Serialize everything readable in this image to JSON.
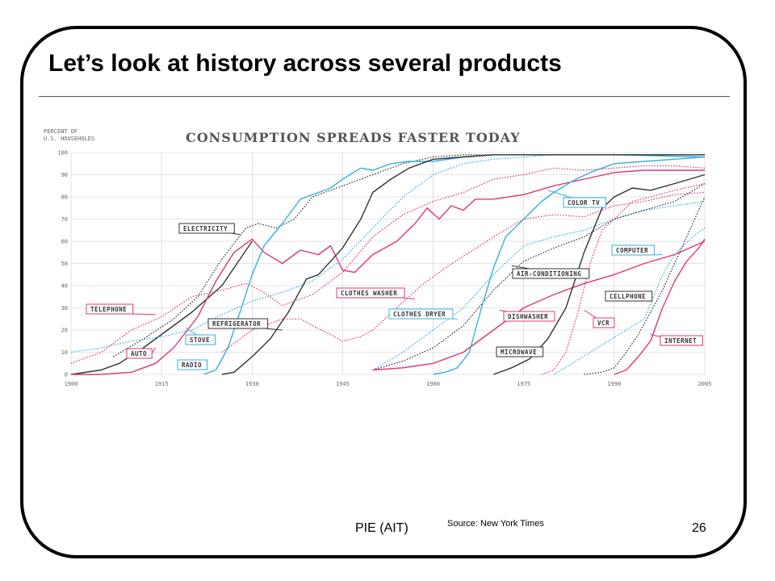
{
  "slide": {
    "title": "Let’s look at history across several products",
    "footer_left": "PIE (AIT)",
    "footer_source": "Source: New York Times",
    "page_number": "26"
  },
  "colors": {
    "pink": "#e0357a",
    "blue": "#35b0e0",
    "black": "#333333",
    "grid": "#cccccc"
  },
  "chart_data": {
    "type": "line",
    "title": "CONSUMPTION SPREADS FASTER TODAY",
    "ylabel_lines": [
      "PERCENT OF",
      "U.S. HOUSEHOLDS"
    ],
    "xlim": [
      1900,
      2005
    ],
    "ylim": [
      0,
      100
    ],
    "x_ticks": [
      1900,
      1915,
      1930,
      1945,
      1960,
      1975,
      1990,
      2005
    ],
    "y_ticks": [
      0,
      10,
      20,
      30,
      40,
      50,
      60,
      70,
      80,
      90,
      100
    ],
    "series": [
      {
        "name": "TELEPHONE",
        "color": "pink",
        "dash": true,
        "points": [
          [
            1900,
            5
          ],
          [
            1905,
            10
          ],
          [
            1910,
            20
          ],
          [
            1915,
            26
          ],
          [
            1920,
            35
          ],
          [
            1925,
            38
          ],
          [
            1929,
            41
          ],
          [
            1932,
            37
          ],
          [
            1935,
            31
          ],
          [
            1940,
            36
          ],
          [
            1945,
            46
          ],
          [
            1950,
            62
          ],
          [
            1955,
            72
          ],
          [
            1960,
            78
          ],
          [
            1965,
            82
          ],
          [
            1970,
            88
          ],
          [
            1975,
            90
          ],
          [
            1980,
            93
          ],
          [
            1985,
            92
          ],
          [
            1990,
            93
          ],
          [
            1995,
            94
          ],
          [
            2000,
            94
          ],
          [
            2005,
            93
          ]
        ]
      },
      {
        "name": "ELECTRICITY",
        "color": "black",
        "dash": true,
        "points": [
          [
            1907,
            8
          ],
          [
            1912,
            16
          ],
          [
            1917,
            25
          ],
          [
            1921,
            35
          ],
          [
            1925,
            52
          ],
          [
            1929,
            66
          ],
          [
            1931,
            68
          ],
          [
            1934,
            66
          ],
          [
            1937,
            70
          ],
          [
            1940,
            80
          ],
          [
            1945,
            85
          ],
          [
            1950,
            90
          ],
          [
            1955,
            95
          ],
          [
            1960,
            98
          ],
          [
            1965,
            99
          ],
          [
            1970,
            99
          ],
          [
            1980,
            99
          ],
          [
            2005,
            99
          ]
        ]
      },
      {
        "name": "AUTO",
        "color": "black",
        "dash": false,
        "points": [
          [
            1900,
            0
          ],
          [
            1905,
            2
          ],
          [
            1908,
            5
          ],
          [
            1912,
            12
          ],
          [
            1916,
            20
          ],
          [
            1920,
            28
          ],
          [
            1925,
            40
          ],
          [
            1930,
            60
          ]
        ]
      },
      {
        "name": "AUTO_CONTINUED",
        "color": "pink",
        "dash": false,
        "points": [
          [
            1900,
            0
          ],
          [
            1905,
            0
          ],
          [
            1910,
            1
          ],
          [
            1914,
            5
          ],
          [
            1917,
            12
          ],
          [
            1921,
            26
          ],
          [
            1924,
            42
          ],
          [
            1927,
            55
          ],
          [
            1930,
            61
          ],
          [
            1932,
            55
          ],
          [
            1935,
            50
          ],
          [
            1938,
            56
          ],
          [
            1941,
            54
          ],
          [
            1943,
            58
          ],
          [
            1945,
            47
          ],
          [
            1947,
            46
          ],
          [
            1950,
            54
          ],
          [
            1954,
            60
          ],
          [
            1957,
            68
          ],
          [
            1959,
            75
          ],
          [
            1961,
            70
          ],
          [
            1963,
            76
          ],
          [
            1965,
            74
          ],
          [
            1967,
            79
          ],
          [
            1970,
            79
          ],
          [
            1975,
            81
          ],
          [
            1980,
            85
          ],
          [
            1985,
            88
          ],
          [
            1990,
            91
          ],
          [
            1995,
            92
          ],
          [
            2000,
            92
          ],
          [
            2005,
            92
          ]
        ]
      },
      {
        "name": "RADIO",
        "color": "blue",
        "dash": false,
        "points": [
          [
            1922,
            0
          ],
          [
            1924,
            2
          ],
          [
            1926,
            12
          ],
          [
            1928,
            28
          ],
          [
            1930,
            45
          ],
          [
            1932,
            58
          ],
          [
            1935,
            68
          ],
          [
            1938,
            79
          ],
          [
            1941,
            82
          ],
          [
            1943,
            84
          ],
          [
            1945,
            88
          ],
          [
            1948,
            93
          ],
          [
            1950,
            92
          ],
          [
            1953,
            95
          ],
          [
            1956,
            96
          ],
          [
            1960,
            96
          ],
          [
            1965,
            98
          ],
          [
            1970,
            99
          ],
          [
            1980,
            99
          ],
          [
            1990,
            99
          ],
          [
            2005,
            98
          ]
        ]
      },
      {
        "name": "STOVE",
        "color": "blue",
        "dash": true,
        "points": [
          [
            1900,
            10
          ],
          [
            1905,
            12
          ],
          [
            1910,
            15
          ],
          [
            1915,
            17
          ],
          [
            1920,
            20
          ],
          [
            1925,
            27
          ],
          [
            1930,
            33
          ],
          [
            1935,
            37
          ],
          [
            1940,
            42
          ],
          [
            1945,
            52
          ],
          [
            1950,
            66
          ],
          [
            1955,
            80
          ],
          [
            1960,
            90
          ],
          [
            1965,
            95
          ],
          [
            1970,
            97
          ],
          [
            1975,
            98
          ],
          [
            1980,
            99
          ],
          [
            2005,
            99
          ]
        ]
      },
      {
        "name": "REFRIGERATOR",
        "color": "black",
        "dash": false,
        "points": [
          [
            1925,
            0
          ],
          [
            1927,
            1
          ],
          [
            1930,
            8
          ],
          [
            1933,
            16
          ],
          [
            1936,
            28
          ],
          [
            1939,
            43
          ],
          [
            1941,
            45
          ],
          [
            1945,
            57
          ],
          [
            1948,
            70
          ],
          [
            1950,
            82
          ],
          [
            1953,
            88
          ],
          [
            1956,
            93
          ],
          [
            1960,
            97
          ],
          [
            1965,
            98
          ],
          [
            1970,
            99
          ],
          [
            1980,
            99
          ],
          [
            2005,
            99
          ]
        ]
      },
      {
        "name": "CLOTHES WASHER",
        "color": "pink",
        "dash": true,
        "points": [
          [
            1925,
            10
          ],
          [
            1930,
            20
          ],
          [
            1935,
            25
          ],
          [
            1938,
            25
          ],
          [
            1940,
            22
          ],
          [
            1943,
            18
          ],
          [
            1945,
            15
          ],
          [
            1948,
            17
          ],
          [
            1950,
            20
          ],
          [
            1954,
            30
          ],
          [
            1958,
            40
          ],
          [
            1962,
            48
          ],
          [
            1966,
            55
          ],
          [
            1970,
            62
          ],
          [
            1975,
            70
          ],
          [
            1980,
            72
          ],
          [
            1985,
            71
          ],
          [
            1990,
            76
          ],
          [
            1995,
            78
          ],
          [
            2000,
            81
          ],
          [
            2005,
            82
          ]
        ]
      },
      {
        "name": "CLOTHES DRYER",
        "color": "blue",
        "dash": true,
        "points": [
          [
            1950,
            2
          ],
          [
            1955,
            10
          ],
          [
            1960,
            20
          ],
          [
            1965,
            30
          ],
          [
            1970,
            45
          ],
          [
            1975,
            58
          ],
          [
            1980,
            62
          ],
          [
            1985,
            65
          ],
          [
            1990,
            70
          ],
          [
            1995,
            74
          ],
          [
            2000,
            76
          ],
          [
            2005,
            78
          ]
        ]
      },
      {
        "name": "AIR-CONDITIONING",
        "color": "black",
        "dash": true,
        "points": [
          [
            1950,
            2
          ],
          [
            1955,
            6
          ],
          [
            1960,
            12
          ],
          [
            1965,
            22
          ],
          [
            1970,
            38
          ],
          [
            1975,
            51
          ],
          [
            1980,
            57
          ],
          [
            1985,
            62
          ],
          [
            1990,
            70
          ],
          [
            1995,
            74
          ],
          [
            2000,
            78
          ],
          [
            2005,
            86
          ]
        ]
      },
      {
        "name": "DISHWASHER",
        "color": "pink",
        "dash": false,
        "points": [
          [
            1950,
            2
          ],
          [
            1955,
            3
          ],
          [
            1960,
            5
          ],
          [
            1965,
            10
          ],
          [
            1970,
            20
          ],
          [
            1975,
            30
          ],
          [
            1980,
            36
          ],
          [
            1985,
            41
          ],
          [
            1990,
            45
          ],
          [
            1995,
            50
          ],
          [
            2000,
            54
          ],
          [
            2005,
            60
          ]
        ]
      },
      {
        "name": "COLOR TV",
        "color": "blue",
        "dash": false,
        "points": [
          [
            1960,
            0
          ],
          [
            1962,
            1
          ],
          [
            1964,
            3
          ],
          [
            1966,
            10
          ],
          [
            1968,
            30
          ],
          [
            1970,
            48
          ],
          [
            1972,
            62
          ],
          [
            1975,
            70
          ],
          [
            1978,
            78
          ],
          [
            1980,
            82
          ],
          [
            1983,
            87
          ],
          [
            1986,
            91
          ],
          [
            1990,
            95
          ],
          [
            1995,
            96
          ],
          [
            2000,
            97
          ],
          [
            2005,
            98
          ]
        ]
      },
      {
        "name": "MICROWAVE",
        "color": "black",
        "dash": false,
        "points": [
          [
            1970,
            0
          ],
          [
            1973,
            3
          ],
          [
            1976,
            7
          ],
          [
            1979,
            16
          ],
          [
            1982,
            30
          ],
          [
            1985,
            55
          ],
          [
            1988,
            75
          ],
          [
            1990,
            80
          ],
          [
            1993,
            84
          ],
          [
            1996,
            83
          ],
          [
            2000,
            86
          ],
          [
            2005,
            90
          ]
        ]
      },
      {
        "name": "VCR",
        "color": "pink",
        "dash": true,
        "points": [
          [
            1978,
            0
          ],
          [
            1980,
            2
          ],
          [
            1982,
            10
          ],
          [
            1984,
            28
          ],
          [
            1986,
            50
          ],
          [
            1988,
            65
          ],
          [
            1990,
            70
          ],
          [
            1993,
            78
          ],
          [
            1996,
            80
          ],
          [
            2000,
            83
          ],
          [
            2005,
            86
          ]
        ]
      },
      {
        "name": "COMPUTER",
        "color": "blue",
        "dash": true,
        "points": [
          [
            1980,
            0
          ],
          [
            1983,
            5
          ],
          [
            1986,
            10
          ],
          [
            1989,
            15
          ],
          [
            1992,
            20
          ],
          [
            1995,
            25
          ],
          [
            1998,
            45
          ],
          [
            2000,
            54
          ],
          [
            2003,
            62
          ],
          [
            2005,
            66
          ]
        ]
      },
      {
        "name": "CELLPHONE",
        "color": "black",
        "dash": true,
        "points": [
          [
            1985,
            0
          ],
          [
            1988,
            1
          ],
          [
            1990,
            3
          ],
          [
            1992,
            10
          ],
          [
            1994,
            18
          ],
          [
            1996,
            28
          ],
          [
            1998,
            38
          ],
          [
            2000,
            50
          ],
          [
            2002,
            62
          ],
          [
            2004,
            74
          ],
          [
            2005,
            80
          ]
        ]
      },
      {
        "name": "INTERNET",
        "color": "pink",
        "dash": false,
        "points": [
          [
            1990,
            0
          ],
          [
            1992,
            2
          ],
          [
            1994,
            8
          ],
          [
            1996,
            15
          ],
          [
            1998,
            30
          ],
          [
            2000,
            42
          ],
          [
            2002,
            51
          ],
          [
            2004,
            57
          ],
          [
            2005,
            61
          ]
        ]
      }
    ],
    "labels": [
      {
        "text": "TELEPHONE",
        "color": "pink"
      },
      {
        "text": "ELECTRICITY",
        "color": "black"
      },
      {
        "text": "AUTO",
        "color": "pink"
      },
      {
        "text": "STOVE",
        "color": "blue"
      },
      {
        "text": "RADIO",
        "color": "blue"
      },
      {
        "text": "REFRIGERATOR",
        "color": "black"
      },
      {
        "text": "CLOTHES WASHER",
        "color": "pink"
      },
      {
        "text": "CLOTHES DRYER",
        "color": "blue"
      },
      {
        "text": "AIR-CONDITIONING",
        "color": "black"
      },
      {
        "text": "DISHWASHER",
        "color": "pink"
      },
      {
        "text": "COLOR TV",
        "color": "blue"
      },
      {
        "text": "MICROWAVE",
        "color": "black"
      },
      {
        "text": "VCR",
        "color": "pink"
      },
      {
        "text": "COMPUTER",
        "color": "blue"
      },
      {
        "text": "CELLPHONE",
        "color": "black"
      },
      {
        "text": "INTERNET",
        "color": "pink"
      }
    ]
  }
}
